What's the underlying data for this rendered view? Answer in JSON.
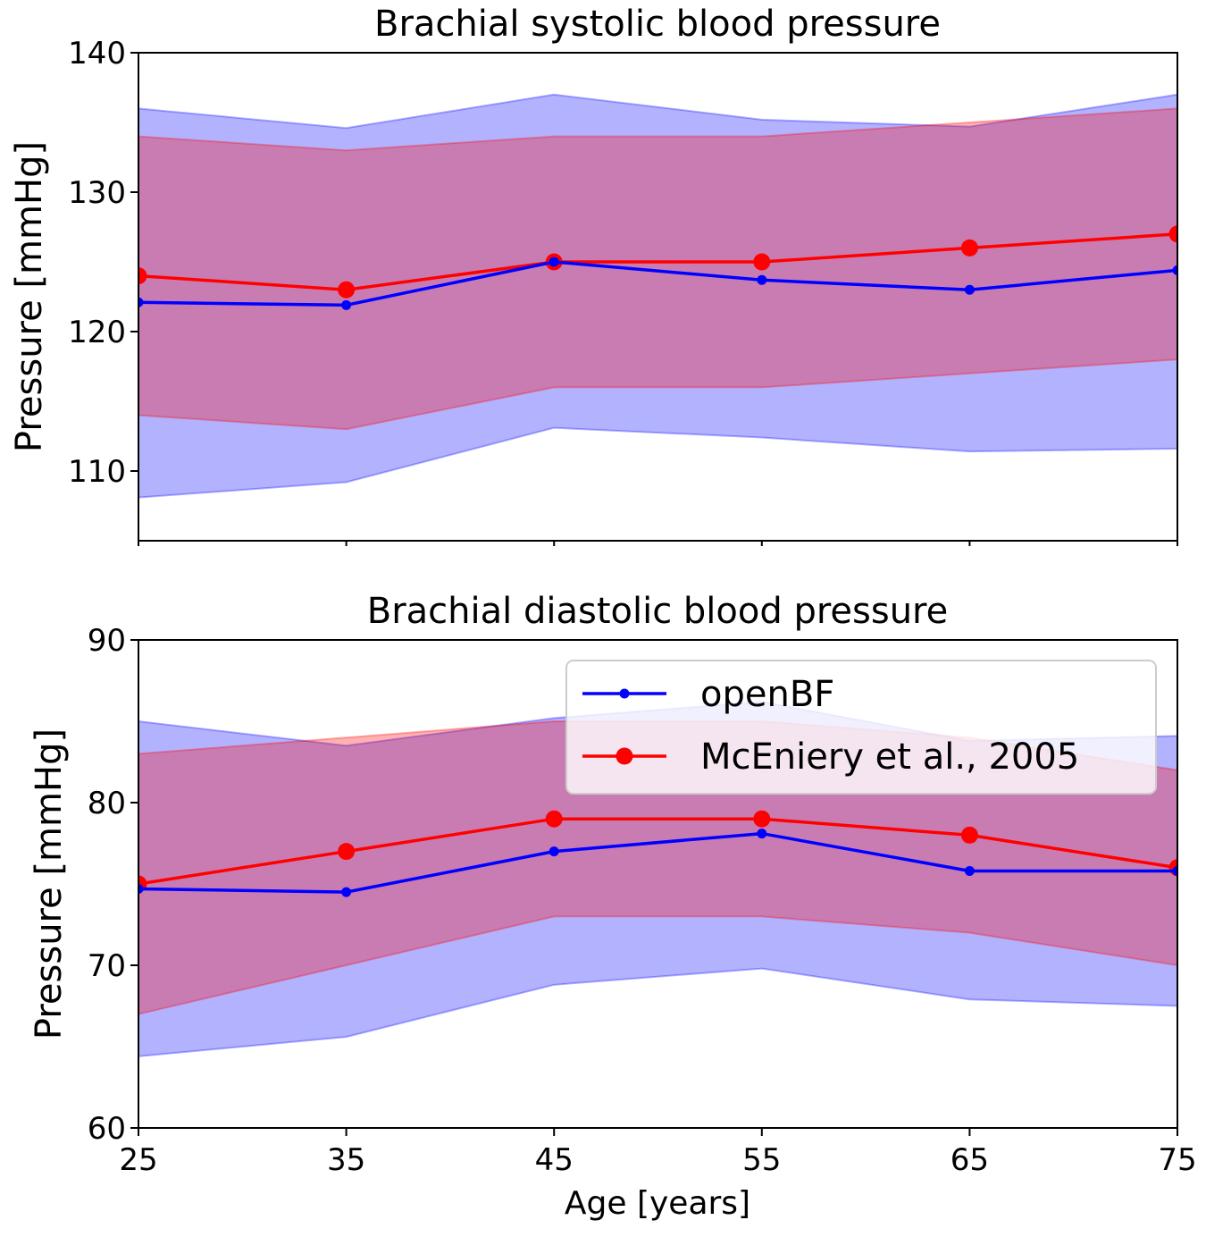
{
  "chart_data": [
    {
      "type": "line",
      "title": "Brachial systolic blood pressure",
      "xlabel": "",
      "ylabel": "Pressure [mmHg]",
      "x": [
        25,
        35,
        45,
        55,
        65,
        75
      ],
      "xlim": [
        25,
        75
      ],
      "ylim": [
        105,
        140
      ],
      "yticks": [
        110,
        120,
        130,
        140
      ],
      "grid": false,
      "series": [
        {
          "name": "openBF",
          "color": "#0000ff",
          "values": [
            122.1,
            121.9,
            125.0,
            123.7,
            123.0,
            124.4
          ],
          "band_upper": [
            136.0,
            134.6,
            137.0,
            135.2,
            134.7,
            137.0
          ],
          "band_lower": [
            108.1,
            109.2,
            113.1,
            112.4,
            111.4,
            111.6
          ]
        },
        {
          "name": "McEniery et al., 2005",
          "color": "#ff0000",
          "values": [
            124,
            123,
            125,
            125,
            126,
            127
          ],
          "band_upper": [
            134,
            133,
            134,
            134,
            135,
            136
          ],
          "band_lower": [
            114,
            113,
            116,
            116,
            117,
            118
          ]
        }
      ]
    },
    {
      "type": "line",
      "title": "Brachial diastolic blood pressure",
      "xlabel": "Age [years]",
      "ylabel": "Pressure [mmHg]",
      "x": [
        25,
        35,
        45,
        55,
        65,
        75
      ],
      "xlim": [
        25,
        75
      ],
      "ylim": [
        60,
        90
      ],
      "xticks": [
        25,
        35,
        45,
        55,
        65,
        75
      ],
      "yticks": [
        60,
        70,
        80,
        90
      ],
      "grid": false,
      "legend": "upper-right",
      "series": [
        {
          "name": "openBF",
          "color": "#0000ff",
          "values": [
            74.7,
            74.5,
            77.0,
            78.1,
            75.8,
            75.8
          ],
          "band_upper": [
            85.0,
            83.5,
            85.2,
            86.2,
            83.8,
            84.1
          ],
          "band_lower": [
            64.4,
            65.6,
            68.8,
            69.8,
            67.9,
            67.5
          ]
        },
        {
          "name": "McEniery et al., 2005",
          "color": "#ff0000",
          "values": [
            75,
            77,
            79,
            79,
            78,
            76
          ],
          "band_upper": [
            83,
            84,
            85,
            85,
            84,
            82
          ],
          "band_lower": [
            67,
            70,
            73,
            73,
            72,
            70
          ]
        }
      ]
    }
  ]
}
